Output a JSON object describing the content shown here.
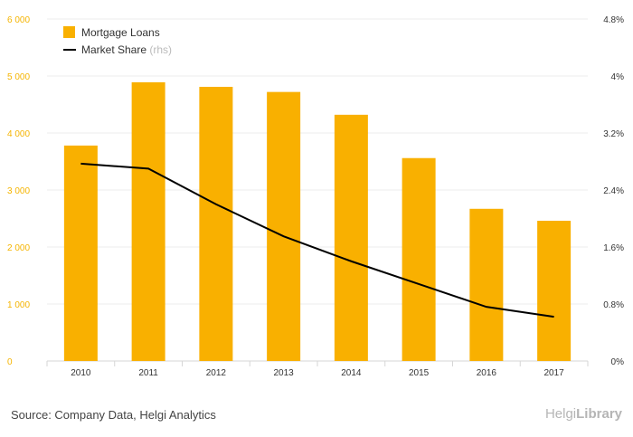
{
  "chart_data": {
    "type": "bar+line",
    "title": "",
    "categories": [
      "2010",
      "2011",
      "2012",
      "2013",
      "2014",
      "2015",
      "2016",
      "2017"
    ],
    "series": [
      {
        "name": "Mortgage Loans",
        "type": "bar",
        "axis": "left",
        "values": [
          3780,
          4890,
          4810,
          4720,
          4320,
          3560,
          2670,
          2460
        ]
      },
      {
        "name": "Market Share",
        "type": "line",
        "axis": "right",
        "values": [
          2.77,
          2.7,
          2.2,
          1.75,
          1.4,
          1.08,
          0.76,
          0.62
        ]
      }
    ],
    "y_left": {
      "min": 0,
      "max": 6000,
      "ticks": [
        0,
        1000,
        2000,
        3000,
        4000,
        5000,
        6000
      ],
      "tick_labels": [
        "0",
        "1 000",
        "2 000",
        "3 000",
        "4 000",
        "5 000",
        "6 000"
      ]
    },
    "y_right": {
      "min": 0,
      "max": 4.8,
      "ticks": [
        0,
        0.8,
        1.6,
        2.4,
        3.2,
        4.0,
        4.8
      ],
      "tick_labels": [
        "0%",
        "0.8%",
        "1.6%",
        "2.4%",
        "3.2%",
        "4%",
        "4.8%"
      ]
    },
    "legend": {
      "position": "top-left",
      "items": [
        {
          "label": "Mortgage Loans"
        },
        {
          "label": "Market Share",
          "suffix": " (rhs)"
        }
      ]
    },
    "colors": {
      "bar": "#f9b000",
      "line": "#000000",
      "left_axis_text": "#f5b400"
    }
  },
  "footer": {
    "source": "Source: Company Data, Helgi Analytics",
    "brand_a": "Helgi",
    "brand_b": "Library"
  }
}
